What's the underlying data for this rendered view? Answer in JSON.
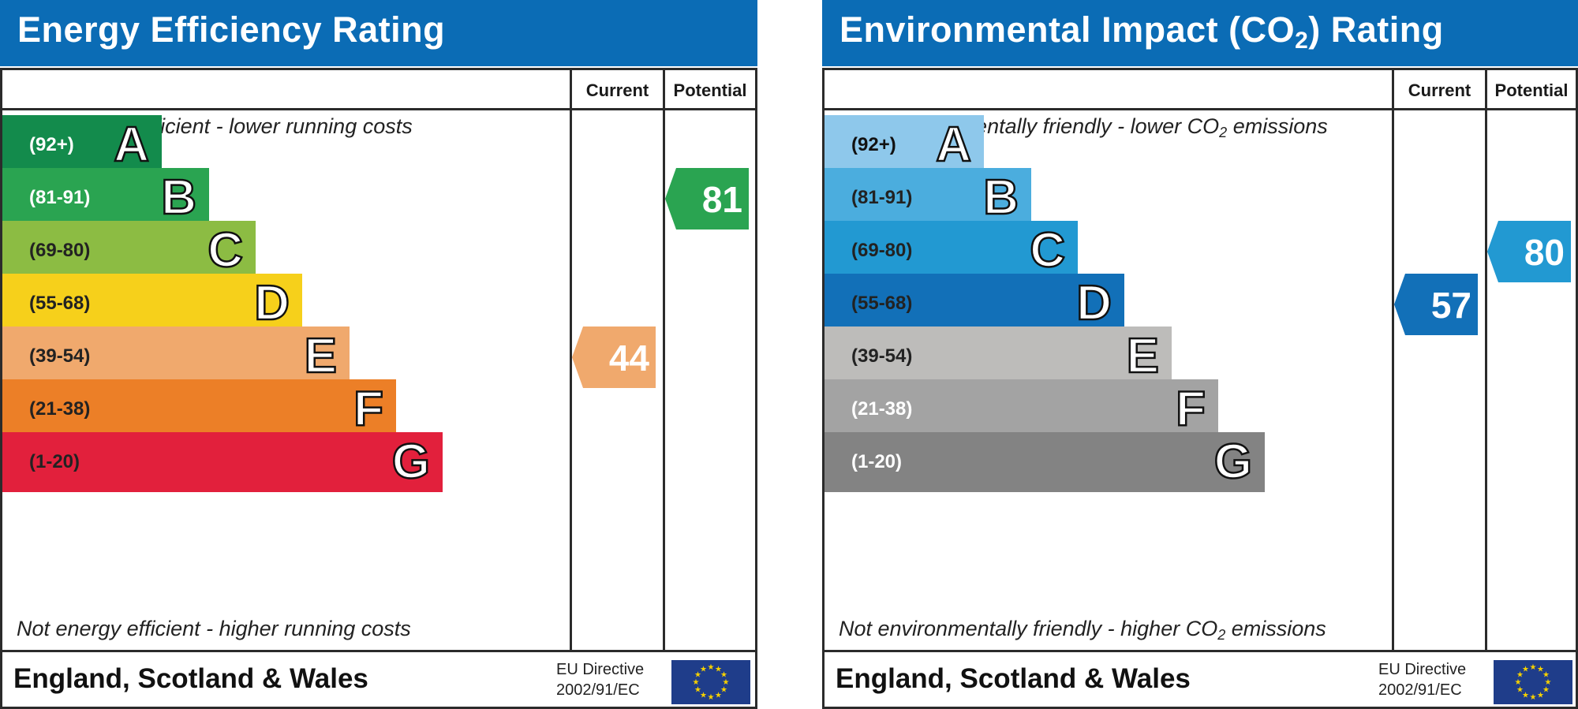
{
  "chart_data": [
    {
      "type": "bar",
      "title": "Energy Efficiency Rating",
      "columns": [
        "Current",
        "Potential"
      ],
      "top_note": "Very energy efficient - lower running costs",
      "bottom_note": "Not energy efficient - higher running costs",
      "bands": [
        {
          "letter": "A",
          "range": "(92+)",
          "color": "#138b4c",
          "text_color": "#ffffff"
        },
        {
          "letter": "B",
          "range": "(81-91)",
          "color": "#2aa451",
          "text_color": "#ffffff"
        },
        {
          "letter": "C",
          "range": "(69-80)",
          "color": "#8cbc43",
          "text_color": "#222222"
        },
        {
          "letter": "D",
          "range": "(55-68)",
          "color": "#f6d01b",
          "text_color": "#222222"
        },
        {
          "letter": "E",
          "range": "(39-54)",
          "color": "#f0a96d",
          "text_color": "#222222"
        },
        {
          "letter": "F",
          "range": "(21-38)",
          "color": "#ec7f27",
          "text_color": "#222222"
        },
        {
          "letter": "G",
          "range": "(1-20)",
          "color": "#e2203c",
          "text_color": "#222222"
        }
      ],
      "current": {
        "value": 44,
        "band": "E",
        "color": "#f0a96d"
      },
      "potential": {
        "value": 81,
        "band": "B",
        "color": "#2aa451"
      },
      "footer": {
        "region": "England, Scotland & Wales",
        "directive_line1": "EU Directive",
        "directive_line2": "2002/91/EC"
      }
    },
    {
      "type": "bar",
      "title": "Environmental Impact (CO2) Rating",
      "columns": [
        "Current",
        "Potential"
      ],
      "top_note": "Very environmentally friendly - lower CO2 emissions",
      "bottom_note": "Not environmentally friendly - higher CO2 emissions",
      "bands": [
        {
          "letter": "A",
          "range": "(92+)",
          "color": "#8ec8eb",
          "text_color": "#111111"
        },
        {
          "letter": "B",
          "range": "(81-91)",
          "color": "#4badde",
          "text_color": "#222222"
        },
        {
          "letter": "C",
          "range": "(69-80)",
          "color": "#2299d2",
          "text_color": "#222222"
        },
        {
          "letter": "D",
          "range": "(55-68)",
          "color": "#1270b8",
          "text_color": "#222222"
        },
        {
          "letter": "E",
          "range": "(39-54)",
          "color": "#bdbcba",
          "text_color": "#222222"
        },
        {
          "letter": "F",
          "range": "(21-38)",
          "color": "#a3a3a3",
          "text_color": "#ffffff"
        },
        {
          "letter": "G",
          "range": "(1-20)",
          "color": "#838383",
          "text_color": "#ffffff"
        }
      ],
      "current": {
        "value": 57,
        "band": "D",
        "color": "#1270b8"
      },
      "potential": {
        "value": 80,
        "band": "C",
        "color": "#2299d2"
      },
      "footer": {
        "region": "England, Scotland & Wales",
        "directive_line1": "EU Directive",
        "directive_line2": "2002/91/EC"
      }
    }
  ]
}
